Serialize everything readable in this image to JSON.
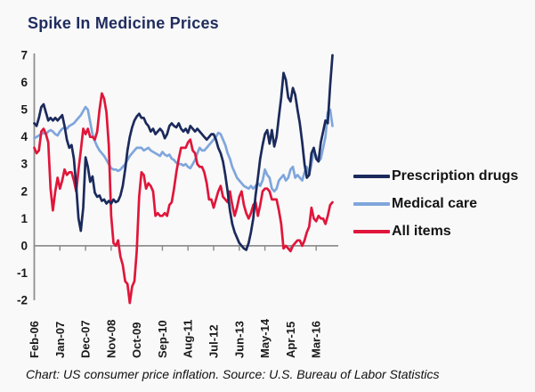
{
  "title": "Spike In Medicine Prices",
  "caption": "Chart: US consumer price inflation. Source: U.S. Bureau of Labor Statistics",
  "colors": {
    "title": "#1f2c5e",
    "axis": "#8f8f8f",
    "prescription_drugs": "#1b2a5c",
    "medical_care": "#7fa6dc",
    "all_items": "#e0163a",
    "background": "#f9f9f9",
    "label_text": "#1a1a1a"
  },
  "legend": [
    {
      "label": "Prescription drugs",
      "color": "#1b2a5c"
    },
    {
      "label": "Medical care",
      "color": "#7fa6dc"
    },
    {
      "label": "All items",
      "color": "#e0163a"
    }
  ],
  "chart_data": {
    "type": "line",
    "x_monthly_from": "Feb-2006",
    "x_monthly_to": "Oct-2016",
    "x_tick_month_indices": [
      0,
      11,
      22,
      33,
      44,
      55,
      66,
      77,
      88,
      99,
      110,
      121
    ],
    "x_tick_labels": [
      "Feb-06",
      "Jan-07",
      "Dec-07",
      "Nov-08",
      "Oct-09",
      "Sep-10",
      "Aug-11",
      "Jul-12",
      "Jun-13",
      "May-14",
      "Apr-15",
      "Mar-16"
    ],
    "y_ticks": [
      7,
      6,
      5,
      4,
      3,
      2,
      1,
      0,
      -1,
      -2
    ],
    "ylim": [
      -2,
      7
    ],
    "ylabel": "",
    "xlabel": "",
    "grid": false,
    "legend_position": "right",
    "series": [
      {
        "name": "Prescription drugs",
        "color": "#1b2a5c",
        "values": [
          4.5,
          4.4,
          4.7,
          5.1,
          5.2,
          4.9,
          4.6,
          4.7,
          4.6,
          4.7,
          4.6,
          4.7,
          4.8,
          4.4,
          3.9,
          3.6,
          3.7,
          3.2,
          2.2,
          1.0,
          0.55,
          1.4,
          3.25,
          2.9,
          2.35,
          2.55,
          1.95,
          1.8,
          1.85,
          1.65,
          1.7,
          1.55,
          1.65,
          1.55,
          1.7,
          1.6,
          1.65,
          1.85,
          2.2,
          2.8,
          3.5,
          4.0,
          4.35,
          4.6,
          4.75,
          4.85,
          4.7,
          4.7,
          4.5,
          4.4,
          4.2,
          4.3,
          4.1,
          4.2,
          4.3,
          4.2,
          3.95,
          4.1,
          4.4,
          4.5,
          4.4,
          4.35,
          4.5,
          4.3,
          4.2,
          4.3,
          4.15,
          4.4,
          4.3,
          4.2,
          4.3,
          4.2,
          4.1,
          4.0,
          3.9,
          4.0,
          4.1,
          4.1,
          3.9,
          3.6,
          3.4,
          3.1,
          2.6,
          2.0,
          1.3,
          0.8,
          0.5,
          0.3,
          0.1,
          0.0,
          -0.1,
          -0.15,
          0.1,
          0.5,
          1.0,
          1.85,
          2.5,
          3.2,
          3.7,
          4.1,
          4.25,
          3.75,
          4.25,
          3.65,
          4.0,
          4.75,
          5.45,
          6.35,
          6.1,
          5.45,
          5.3,
          5.8,
          5.55,
          5.0,
          4.5,
          3.8,
          3.0,
          2.5,
          2.6,
          3.4,
          3.6,
          3.2,
          3.1,
          3.8,
          4.2,
          4.6,
          4.5,
          5.9,
          7.0
        ]
      },
      {
        "name": "Medical care",
        "color": "#7fa6dc",
        "values": [
          3.95,
          4.0,
          4.05,
          4.1,
          4.15,
          4.1,
          4.2,
          4.25,
          4.2,
          4.1,
          4.05,
          4.2,
          4.3,
          4.35,
          4.3,
          4.4,
          4.45,
          4.5,
          4.6,
          4.7,
          4.8,
          4.95,
          5.1,
          5.0,
          4.55,
          4.1,
          3.85,
          3.65,
          3.5,
          3.4,
          3.3,
          3.15,
          3.0,
          2.85,
          2.8,
          2.8,
          2.75,
          2.8,
          2.9,
          3.0,
          3.15,
          3.3,
          3.4,
          3.5,
          3.6,
          3.6,
          3.6,
          3.5,
          3.55,
          3.6,
          3.5,
          3.45,
          3.4,
          3.35,
          3.3,
          3.45,
          3.35,
          3.3,
          3.35,
          3.2,
          3.15,
          3.05,
          3.0,
          3.0,
          2.95,
          3.0,
          2.9,
          2.85,
          3.0,
          3.15,
          3.4,
          3.6,
          3.5,
          3.5,
          3.6,
          3.7,
          3.8,
          3.9,
          4.0,
          4.15,
          4.1,
          3.9,
          3.7,
          3.4,
          3.2,
          2.9,
          2.7,
          2.5,
          2.4,
          2.3,
          2.2,
          2.15,
          2.1,
          2.2,
          2.1,
          2.2,
          2.3,
          2.2,
          2.4,
          2.8,
          2.6,
          2.5,
          2.1,
          2.0,
          2.1,
          2.4,
          2.5,
          2.6,
          2.4,
          2.5,
          2.8,
          2.9,
          2.5,
          2.6,
          2.5,
          2.4,
          2.7,
          2.9,
          2.6,
          3.0,
          3.5,
          3.3,
          3.1,
          3.2,
          3.6,
          4.0,
          4.9,
          5.0,
          4.4
        ]
      },
      {
        "name": "All items",
        "color": "#e0163a",
        "values": [
          3.6,
          3.4,
          3.5,
          4.2,
          4.3,
          4.1,
          3.8,
          2.1,
          1.3,
          2.0,
          2.5,
          2.1,
          2.4,
          2.8,
          2.6,
          2.7,
          2.7,
          2.4,
          2.0,
          2.8,
          3.5,
          4.3,
          4.1,
          4.3,
          4.0,
          4.0,
          3.9,
          4.2,
          5.0,
          5.6,
          5.4,
          4.9,
          3.7,
          1.1,
          0.1,
          0.0,
          0.2,
          -0.4,
          -0.7,
          -1.3,
          -1.4,
          -2.1,
          -1.5,
          -1.3,
          -0.2,
          1.8,
          2.7,
          2.6,
          2.1,
          2.3,
          2.2,
          2.0,
          1.1,
          1.2,
          1.1,
          1.1,
          1.2,
          1.1,
          1.5,
          1.6,
          2.1,
          2.7,
          3.2,
          3.6,
          3.6,
          3.6,
          3.8,
          3.9,
          3.5,
          3.4,
          3.0,
          2.9,
          2.9,
          2.7,
          2.3,
          1.7,
          1.7,
          1.4,
          1.7,
          2.0,
          2.2,
          1.8,
          1.7,
          1.6,
          2.0,
          1.5,
          1.1,
          1.4,
          1.8,
          2.0,
          1.5,
          1.2,
          1.0,
          1.2,
          1.5,
          1.6,
          1.1,
          1.5,
          2.0,
          2.1,
          2.1,
          2.0,
          1.7,
          1.7,
          1.7,
          1.3,
          0.8,
          -0.1,
          0.0,
          -0.1,
          -0.2,
          0.0,
          0.1,
          0.2,
          0.2,
          0.0,
          0.2,
          0.5,
          0.7,
          1.4,
          1.0,
          0.9,
          1.1,
          1.0,
          1.0,
          0.8,
          1.1,
          1.5,
          1.6
        ]
      }
    ]
  }
}
